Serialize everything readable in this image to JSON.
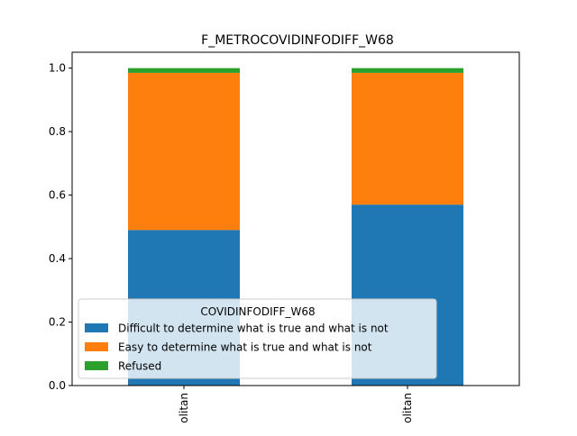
{
  "chart_data": {
    "type": "bar",
    "stacked": true,
    "title": "F_METROCOVIDINFODIFF_W68",
    "xlabel": "",
    "ylabel": "",
    "ylim": [
      0,
      1.05
    ],
    "yticks": [
      0.0,
      0.2,
      0.4,
      0.6,
      0.8,
      1.0
    ],
    "ytick_labels": [
      "0.0",
      "0.2",
      "0.4",
      "0.6",
      "0.8",
      "1.0"
    ],
    "categories": [
      "olitan",
      "olitan"
    ],
    "series": [
      {
        "name": "Difficult to determine what is true and what is not",
        "values": [
          0.49,
          0.57
        ],
        "color": "#1f77b4"
      },
      {
        "name": "Easy to determine what is true and what is not",
        "values": [
          0.495,
          0.415
        ],
        "color": "#ff7f0e"
      },
      {
        "name": "Refused",
        "values": [
          0.015,
          0.015
        ],
        "color": "#2ca02c"
      }
    ],
    "legend": {
      "title": "COVIDINFODIFF_W68",
      "placement": "lower-left"
    },
    "grid": false
  }
}
